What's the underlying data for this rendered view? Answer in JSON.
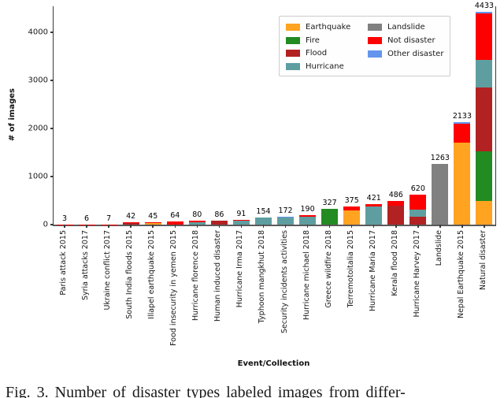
{
  "figure": {
    "caption": "Fig. 3. Number of disaster types labeled images from differ-"
  },
  "chart_data": {
    "type": "bar",
    "stacked": true,
    "title": "",
    "xlabel": "Event/Collection",
    "ylabel": "# of images",
    "ylim": [
      0,
      4541
    ],
    "yticks": [
      0,
      1000,
      2000,
      3000,
      4000
    ],
    "grid": false,
    "legend_position": "upper center, two columns, framed box",
    "legend": [
      {
        "label": "Earthquake",
        "color": "#FFA321"
      },
      {
        "label": "Fire",
        "color": "#228B22"
      },
      {
        "label": "Flood",
        "color": "#B22222"
      },
      {
        "label": "Hurricane",
        "color": "#5F9EA0"
      },
      {
        "label": "Landslide",
        "color": "#808080"
      },
      {
        "label": "Not disaster",
        "color": "#FF0000"
      },
      {
        "label": "Other disaster",
        "color": "#6495ED"
      }
    ],
    "legend_columns": [
      4,
      3
    ],
    "bars": [
      {
        "category": "Paris attack 2015",
        "total": 3,
        "segments": [
          {
            "label": "Not disaster",
            "value": 3
          }
        ]
      },
      {
        "category": "Syria attacks 2017",
        "total": 6,
        "segments": [
          {
            "label": "Not disaster",
            "value": 6
          }
        ]
      },
      {
        "category": "Ukraine conflict 2017",
        "total": 7,
        "segments": [
          {
            "label": "Not disaster",
            "value": 7
          }
        ]
      },
      {
        "category": "South India floods 2015",
        "total": 42,
        "segments": [
          {
            "label": "Flood",
            "value": 34
          },
          {
            "label": "Not disaster",
            "value": 8
          }
        ]
      },
      {
        "category": "Illapel earthquake 2015",
        "total": 45,
        "segments": [
          {
            "label": "Earthquake",
            "value": 36
          },
          {
            "label": "Not disaster",
            "value": 9
          }
        ]
      },
      {
        "category": "Food insecurity in yemen 2015",
        "total": 64,
        "segments": [
          {
            "label": "Not disaster",
            "value": 64
          }
        ]
      },
      {
        "category": "Hurricane florence 2018",
        "total": 80,
        "segments": [
          {
            "label": "Hurricane",
            "value": 48
          },
          {
            "label": "Not disaster",
            "value": 32
          }
        ]
      },
      {
        "category": "Human induced disaster",
        "total": 86,
        "segments": [
          {
            "label": "Flood",
            "value": 78
          },
          {
            "label": "Not disaster",
            "value": 8
          }
        ]
      },
      {
        "category": "Hurricane Irma 2017",
        "total": 91,
        "segments": [
          {
            "label": "Hurricane",
            "value": 80
          },
          {
            "label": "Not disaster",
            "value": 11
          }
        ]
      },
      {
        "category": "Typhoon mangkhut 2018",
        "total": 154,
        "segments": [
          {
            "label": "Hurricane",
            "value": 140
          },
          {
            "label": "Not disaster",
            "value": 14
          }
        ]
      },
      {
        "category": "Security incidents activities",
        "total": 172,
        "segments": [
          {
            "label": "Hurricane",
            "value": 148
          },
          {
            "label": "Not disaster",
            "value": 7
          },
          {
            "label": "Other disaster",
            "value": 17
          }
        ]
      },
      {
        "category": "Hurricane michael 2018",
        "total": 190,
        "segments": [
          {
            "label": "Hurricane",
            "value": 160
          },
          {
            "label": "Landslide",
            "value": 8
          },
          {
            "label": "Not disaster",
            "value": 22
          }
        ]
      },
      {
        "category": "Greece wildfire 2018",
        "total": 327,
        "segments": [
          {
            "label": "Fire",
            "value": 327
          }
        ]
      },
      {
        "category": "Terremotoitalia 2015",
        "total": 375,
        "segments": [
          {
            "label": "Earthquake",
            "value": 300
          },
          {
            "label": "Not disaster",
            "value": 75
          }
        ]
      },
      {
        "category": "Hurricane Maria 2017",
        "total": 421,
        "segments": [
          {
            "label": "Hurricane",
            "value": 372
          },
          {
            "label": "Not disaster",
            "value": 49
          }
        ]
      },
      {
        "category": "Kerala flood 2018",
        "total": 486,
        "segments": [
          {
            "label": "Flood",
            "value": 400
          },
          {
            "label": "Not disaster",
            "value": 86
          }
        ]
      },
      {
        "category": "Hurricane Harvey 2017",
        "total": 620,
        "segments": [
          {
            "label": "Flood",
            "value": 170
          },
          {
            "label": "Hurricane",
            "value": 150
          },
          {
            "label": "Not disaster",
            "value": 300
          }
        ]
      },
      {
        "category": "Landslide",
        "total": 1263,
        "segments": [
          {
            "label": "Landslide",
            "value": 1263
          }
        ]
      },
      {
        "category": "Nepal Earthquake 2015",
        "total": 2133,
        "segments": [
          {
            "label": "Earthquake",
            "value": 1710
          },
          {
            "label": "Not disaster",
            "value": 390
          },
          {
            "label": "Other disaster",
            "value": 33
          }
        ]
      },
      {
        "category": "Natural disaster",
        "total": 4433,
        "segments": [
          {
            "label": "Earthquake",
            "value": 500
          },
          {
            "label": "Fire",
            "value": 1020
          },
          {
            "label": "Flood",
            "value": 1330
          },
          {
            "label": "Hurricane",
            "value": 580
          },
          {
            "label": "Not disaster",
            "value": 970
          },
          {
            "label": "Other disaster",
            "value": 33
          }
        ]
      }
    ]
  }
}
